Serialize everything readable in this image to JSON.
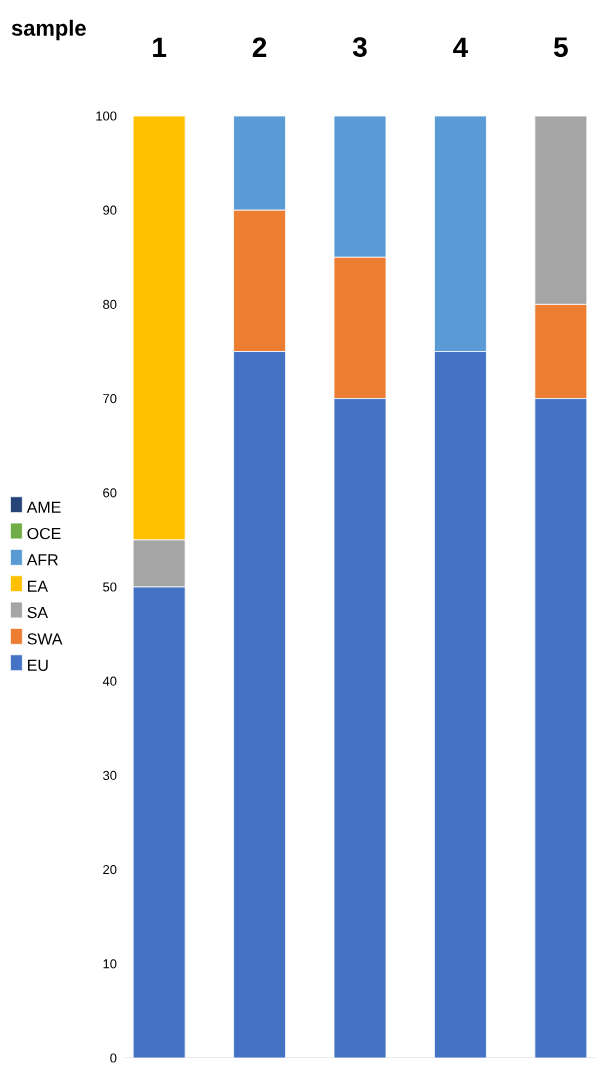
{
  "chart_data": {
    "type": "bar",
    "stacked": true,
    "xlabel": "sample",
    "categories": [
      "1",
      "2",
      "3",
      "4",
      "5"
    ],
    "series": [
      {
        "name": "EU",
        "color": "#4472c4",
        "values": [
          50,
          75,
          70,
          75,
          70
        ]
      },
      {
        "name": "SWA",
        "color": "#ed7d31",
        "values": [
          0,
          15,
          15,
          0,
          10
        ]
      },
      {
        "name": "SA",
        "color": "#a5a5a5",
        "values": [
          5,
          0,
          0,
          0,
          20
        ]
      },
      {
        "name": "EA",
        "color": "#ffc000",
        "values": [
          45,
          0,
          0,
          0,
          0
        ]
      },
      {
        "name": "AFR",
        "color": "#5b9bd5",
        "values": [
          0,
          10,
          15,
          25,
          0
        ]
      },
      {
        "name": "OCE",
        "color": "#70ad47",
        "values": [
          0,
          0,
          0,
          0,
          0
        ]
      },
      {
        "name": "AME",
        "color": "#264478",
        "values": [
          0,
          0,
          0,
          0,
          0
        ]
      }
    ],
    "ylim": [
      0,
      100
    ],
    "yticks": [
      0,
      10,
      20,
      30,
      40,
      50,
      60,
      70,
      80,
      90,
      100
    ],
    "grid": false,
    "legend": "left"
  }
}
